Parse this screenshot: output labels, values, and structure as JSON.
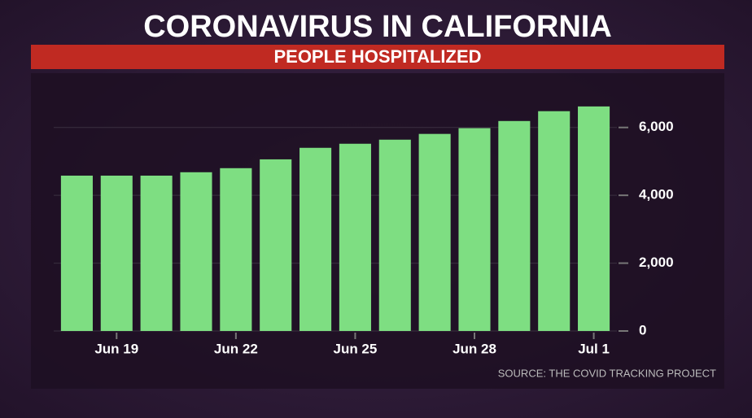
{
  "chart_data": {
    "type": "bar",
    "title": "CORONAVIRUS IN CALIFORNIA",
    "subtitle": "PEOPLE HOSPITALIZED",
    "source": "SOURCE: THE COVID TRACKING PROJECT",
    "categories": [
      null,
      "Jun 19",
      null,
      null,
      "Jun 22",
      null,
      null,
      "Jun 25",
      null,
      null,
      "Jun 28",
      null,
      null,
      "Jul 1"
    ],
    "values": [
      4580,
      4580,
      4580,
      4680,
      4800,
      5060,
      5400,
      5520,
      5640,
      5810,
      5980,
      6190,
      6480,
      6620
    ],
    "color": "#7ede82",
    "ylim": [
      0,
      7600
    ],
    "yticks": [
      0,
      {
        "value": 2000,
        "label": "2,000"
      },
      {
        "value": 4000,
        "label": "4,000"
      },
      {
        "value": 6000,
        "label": "6,000"
      }
    ],
    "grid": true
  }
}
